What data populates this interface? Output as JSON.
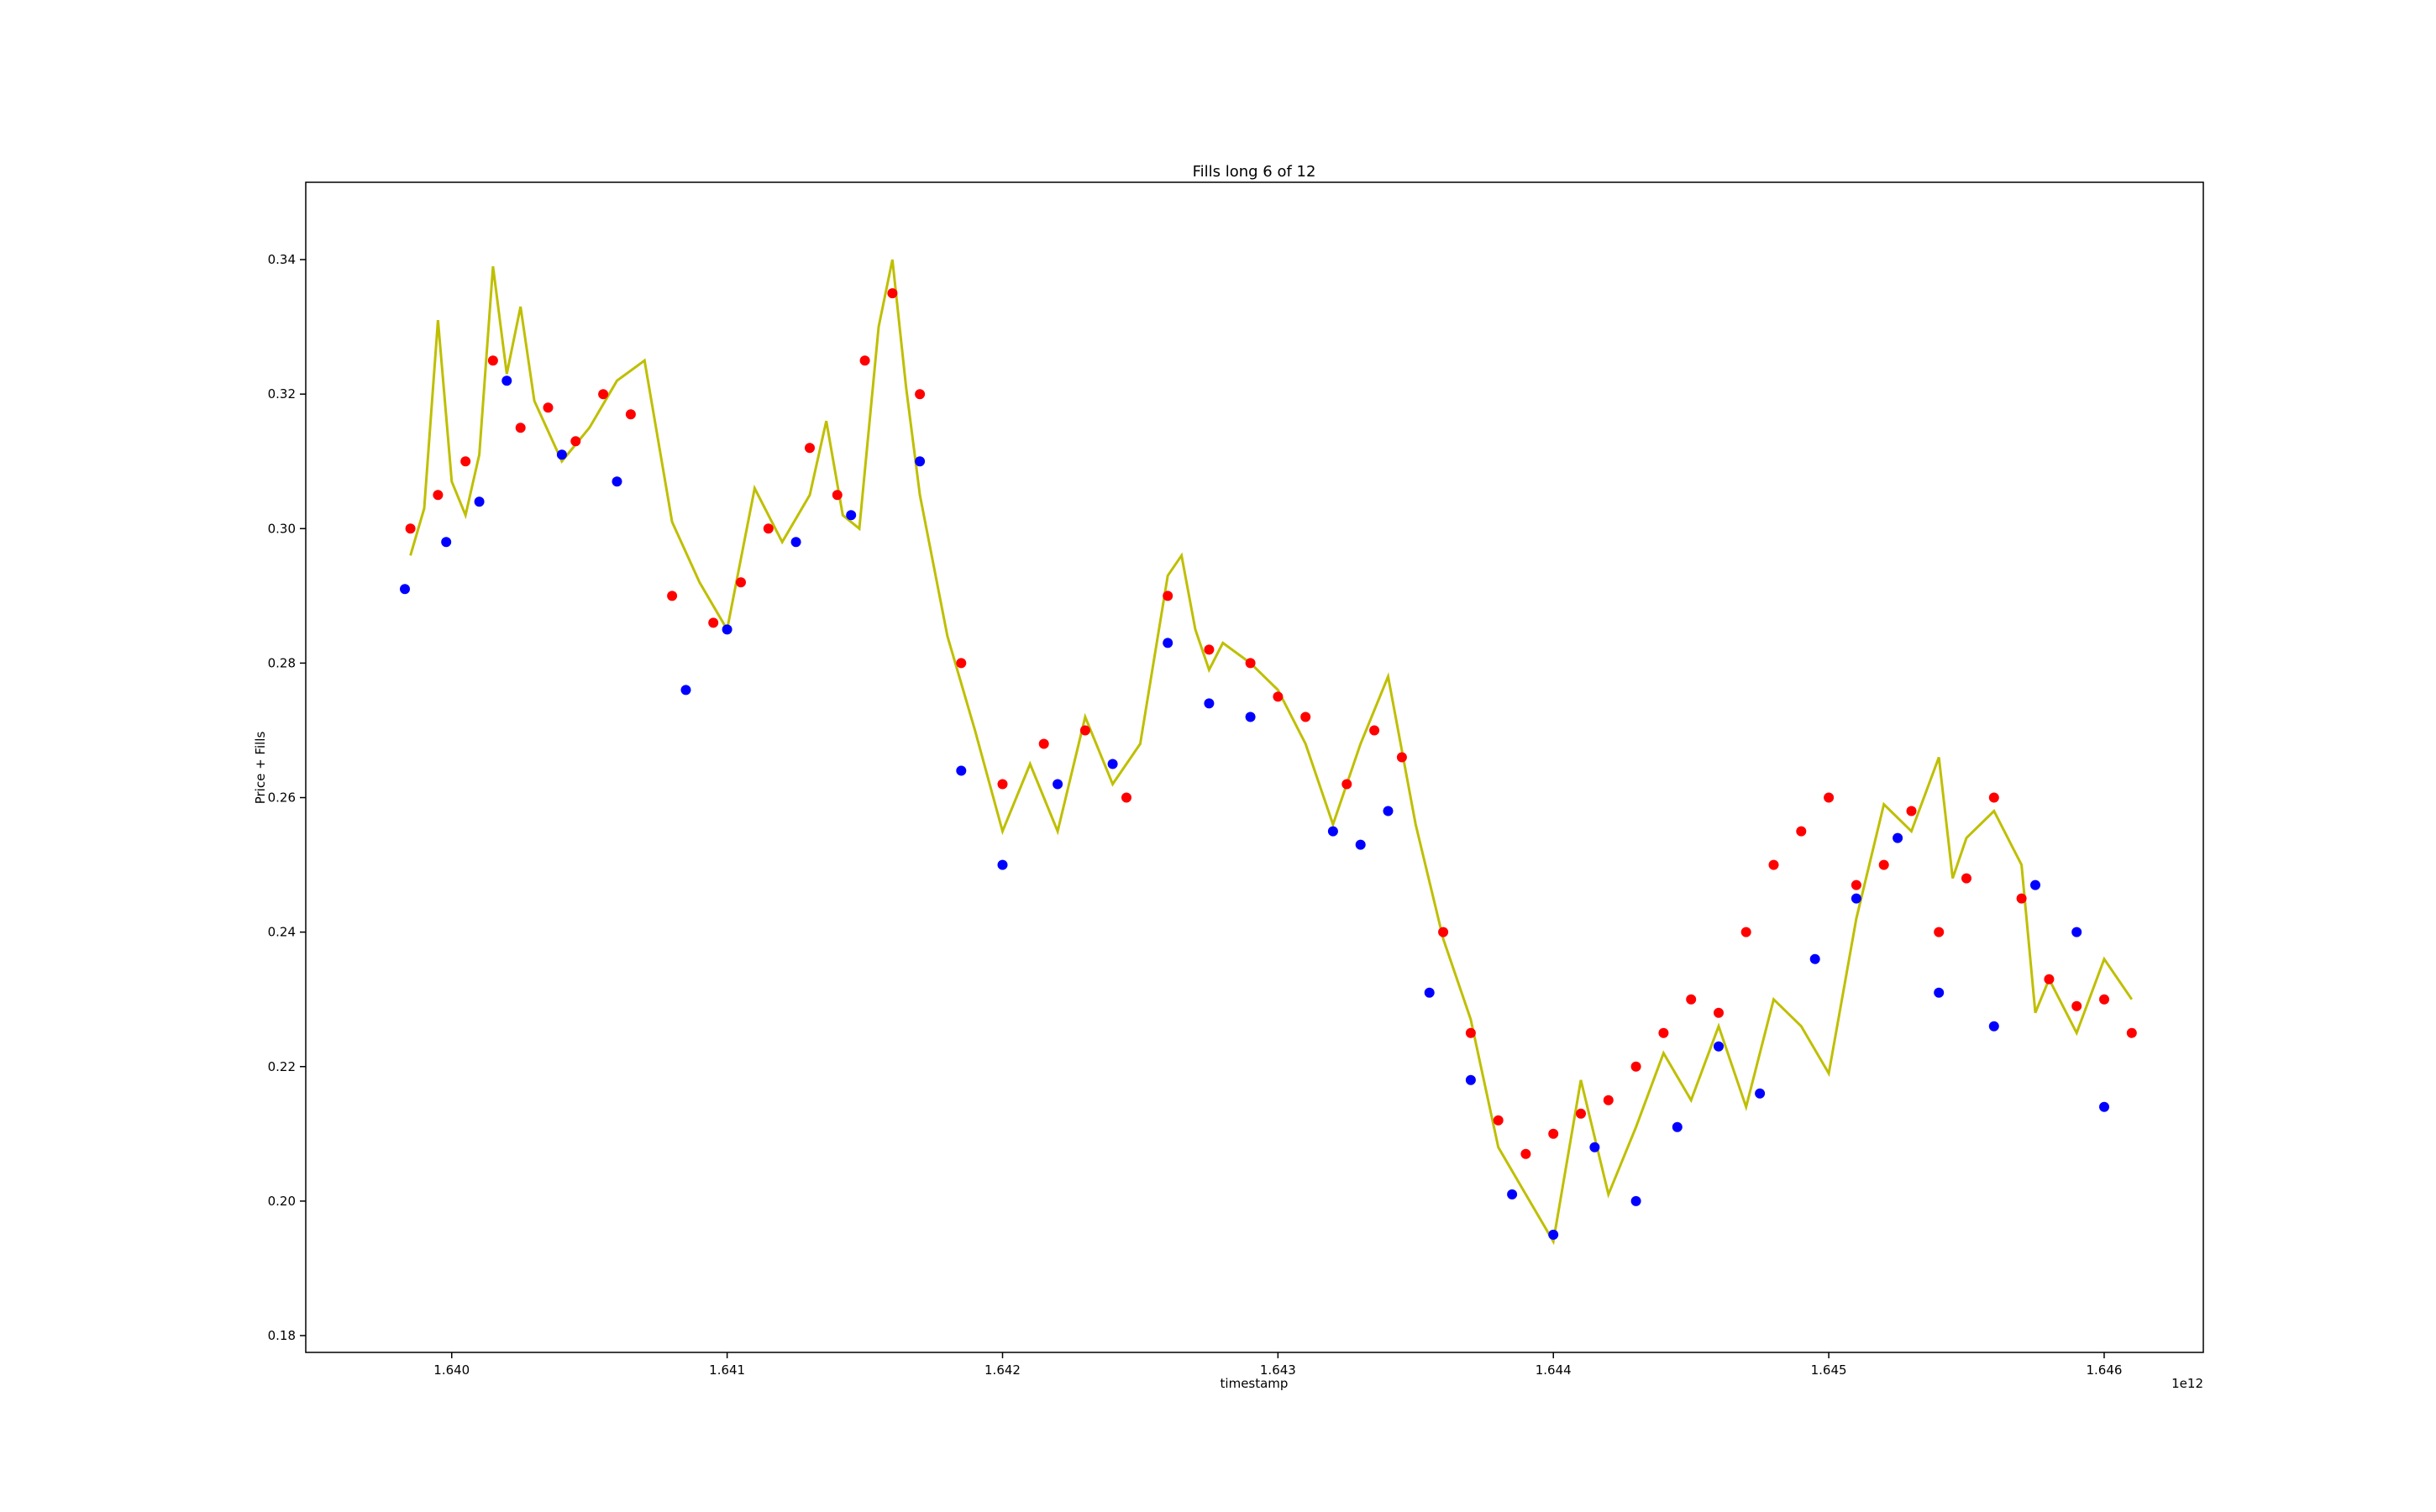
{
  "chart_data": {
    "type": "line",
    "title": "Fills long 6 of 12",
    "xlabel": "timestamp",
    "ylabel": "Price + Fills",
    "x_offset_label": "1e12",
    "xlim": [
      1.63947,
      1.64636
    ],
    "ylim": [
      0.1775,
      0.3515
    ],
    "x_ticks": [
      1.64,
      1.641,
      1.642,
      1.643,
      1.644,
      1.645,
      1.646
    ],
    "x_tick_labels": [
      "1.640",
      "1.641",
      "1.642",
      "1.643",
      "1.644",
      "1.645",
      "1.646"
    ],
    "y_ticks": [
      0.18,
      0.2,
      0.22,
      0.24,
      0.26,
      0.28,
      0.3,
      0.32,
      0.34
    ],
    "y_tick_labels": [
      "0.18",
      "0.20",
      "0.22",
      "0.24",
      "0.26",
      "0.28",
      "0.30",
      "0.32",
      "0.34"
    ],
    "grid": false,
    "colors": {
      "price_line": "#bfbf00",
      "entry_fills": "#ff0000",
      "close_fills": "#0000ff",
      "position_price": "#000000"
    },
    "series": [
      {
        "type": "line",
        "x": [
          1.63985,
          1.6399,
          1.63995,
          1.64,
          1.64005,
          1.6401,
          1.64015,
          1.6402,
          1.64025,
          1.6403,
          1.6404,
          1.6405,
          1.6406,
          1.6407,
          1.6408,
          1.6409,
          1.641,
          1.6411,
          1.6412,
          1.6413,
          1.64136,
          1.64142,
          1.64148,
          1.64155,
          1.6416,
          1.64165,
          1.6417,
          1.6418,
          1.6419,
          1.642,
          1.6421,
          1.6422,
          1.6423,
          1.6424,
          1.6425,
          1.6426,
          1.64265,
          1.6427,
          1.64275,
          1.6428,
          1.6429,
          1.643,
          1.6431,
          1.6432,
          1.6433,
          1.6434,
          1.6435,
          1.6436,
          1.6437,
          1.6438,
          1.6439,
          1.644,
          1.6441,
          1.6442,
          1.6443,
          1.6444,
          1.6445,
          1.6446,
          1.6447,
          1.6448,
          1.6449,
          1.645,
          1.6451,
          1.6452,
          1.6453,
          1.6454,
          1.64545,
          1.6455,
          1.6456,
          1.6457,
          1.64575,
          1.6458,
          1.6459,
          1.646,
          1.6461
        ],
        "y": [
          0.296,
          0.303,
          0.331,
          0.307,
          0.302,
          0.311,
          0.339,
          0.323,
          0.333,
          0.319,
          0.31,
          0.315,
          0.322,
          0.325,
          0.301,
          0.292,
          0.285,
          0.306,
          0.298,
          0.305,
          0.316,
          0.302,
          0.3,
          0.33,
          0.34,
          0.321,
          0.305,
          0.284,
          0.27,
          0.255,
          0.265,
          0.255,
          0.272,
          0.262,
          0.268,
          0.293,
          0.296,
          0.285,
          0.279,
          0.283,
          0.28,
          0.276,
          0.268,
          0.256,
          0.268,
          0.278,
          0.256,
          0.239,
          0.227,
          0.208,
          0.201,
          0.194,
          0.218,
          0.201,
          0.211,
          0.222,
          0.215,
          0.226,
          0.214,
          0.23,
          0.226,
          0.219,
          0.242,
          0.259,
          0.255,
          0.266,
          0.248,
          0.254,
          0.258,
          0.25,
          0.228,
          0.233,
          0.225,
          0.236,
          0.23
        ]
      },
      {
        "type": "scatter",
        "x": [
          1.63985,
          1.63995,
          1.64005,
          1.64015,
          1.64025,
          1.64035,
          1.64045,
          1.64055,
          1.64065,
          1.6408,
          1.64095,
          1.64105,
          1.64115,
          1.6413,
          1.6414,
          1.6415,
          1.6416,
          1.6417,
          1.64185,
          1.642,
          1.64215,
          1.6423,
          1.64245,
          1.6426,
          1.64275,
          1.6429,
          1.643,
          1.6431,
          1.64325,
          1.64335,
          1.64345,
          1.6436,
          1.6437,
          1.6438,
          1.6439,
          1.644,
          1.6441,
          1.6442,
          1.6443,
          1.6444,
          1.6445,
          1.6446,
          1.6447,
          1.6448,
          1.6449,
          1.645,
          1.6451,
          1.6452,
          1.6453,
          1.6454,
          1.6455,
          1.6456,
          1.6457,
          1.6458,
          1.6459,
          1.646,
          1.6461
        ],
        "y": [
          0.3,
          0.305,
          0.31,
          0.325,
          0.315,
          0.318,
          0.313,
          0.32,
          0.317,
          0.29,
          0.286,
          0.292,
          0.3,
          0.312,
          0.305,
          0.325,
          0.335,
          0.32,
          0.28,
          0.262,
          0.268,
          0.27,
          0.26,
          0.29,
          0.282,
          0.28,
          0.275,
          0.272,
          0.262,
          0.27,
          0.266,
          0.24,
          0.225,
          0.212,
          0.207,
          0.21,
          0.213,
          0.215,
          0.22,
          0.225,
          0.23,
          0.228,
          0.24,
          0.25,
          0.255,
          0.26,
          0.247,
          0.25,
          0.258,
          0.24,
          0.248,
          0.26,
          0.245,
          0.233,
          0.229,
          0.23,
          0.225
        ]
      },
      {
        "type": "scatter",
        "x": [
          1.63983,
          1.63998,
          1.6401,
          1.6402,
          1.6404,
          1.6406,
          1.64085,
          1.641,
          1.64125,
          1.64145,
          1.6417,
          1.64185,
          1.642,
          1.6422,
          1.6424,
          1.6426,
          1.64275,
          1.6429,
          1.6432,
          1.6433,
          1.6434,
          1.64355,
          1.6437,
          1.64385,
          1.644,
          1.64415,
          1.6443,
          1.64445,
          1.6446,
          1.64475,
          1.64495,
          1.6451,
          1.64525,
          1.6454,
          1.6456,
          1.64575,
          1.6459,
          1.646
        ],
        "y": [
          0.291,
          0.298,
          0.304,
          0.322,
          0.311,
          0.307,
          0.276,
          0.285,
          0.298,
          0.302,
          0.31,
          0.264,
          0.25,
          0.262,
          0.265,
          0.283,
          0.274,
          0.272,
          0.255,
          0.253,
          0.258,
          0.231,
          0.218,
          0.201,
          0.195,
          0.208,
          0.2,
          0.211,
          0.223,
          0.216,
          0.236,
          0.245,
          0.254,
          0.231,
          0.226,
          0.247,
          0.24,
          0.214
        ]
      }
    ]
  }
}
